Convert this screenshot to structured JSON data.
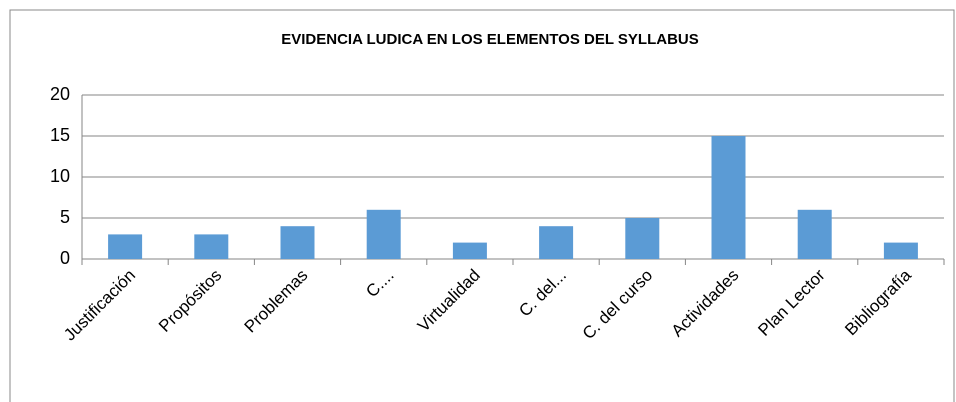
{
  "chart_data": {
    "type": "bar",
    "title": "EVIDENCIA LUDICA EN LOS ELEMENTOS DEL SYLLABUS",
    "categories": [
      "Justificación",
      "Propósitos",
      "Problemas",
      "C....",
      "Virtualidad",
      "C. del...",
      "C. del curso",
      "Actividades",
      "Plan Lector",
      "Bibliografía"
    ],
    "values": [
      3,
      3,
      4,
      6,
      2,
      4,
      5,
      15,
      6,
      2
    ],
    "color": "#5b9bd5",
    "ylim": [
      0,
      20
    ],
    "yticks": [
      0,
      5,
      10,
      15,
      20
    ],
    "grid": true
  }
}
